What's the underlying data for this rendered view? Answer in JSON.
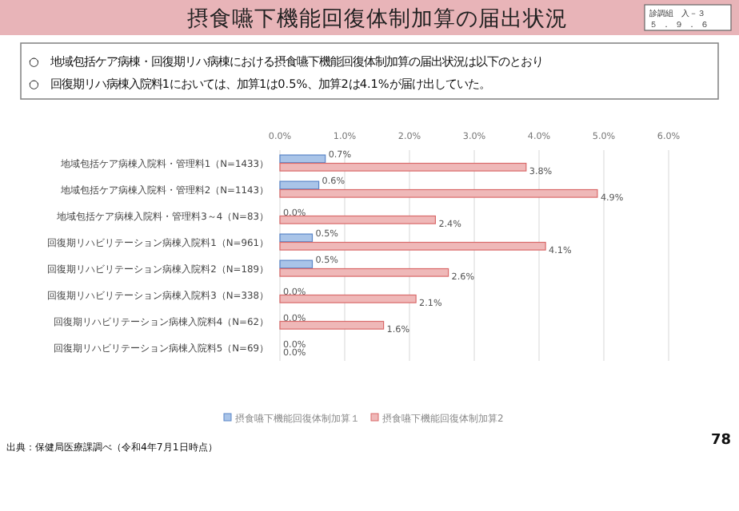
{
  "chart_data": {
    "type": "bar",
    "orientation": "horizontal",
    "title": "摂食嚥下機能回復体制加算の届出状況",
    "categories": [
      "地域包括ケア病棟入院料・管理料1（N=1433）",
      "地域包括ケア病棟入院料・管理料2（N=1143）",
      "地域包括ケア病棟入院料・管理料3～4（N=83）",
      "回復期リハビリテーション病棟入院料1（N=961）",
      "回復期リハビリテーション病棟入院料2（N=189）",
      "回復期リハビリテーション病棟入院料3（N=338）",
      "回復期リハビリテーション病棟入院料4（N=62）",
      "回復期リハビリテーション病棟入院料5（N=69）"
    ],
    "series": [
      {
        "name": "摂食嚥下機能回復体制加算１",
        "color": "#a9c4e8",
        "values": [
          0.7,
          0.6,
          0.0,
          0.5,
          0.5,
          0.0,
          0.0,
          0.0
        ],
        "value_labels": [
          "0.7%",
          "0.6%",
          "0.0%",
          "0.5%",
          "0.5%",
          "0.0%",
          "0.0%",
          "0.0%"
        ]
      },
      {
        "name": "摂食嚥下機能回復体制加算2",
        "color": "#efb8b8",
        "values": [
          3.8,
          4.9,
          2.4,
          4.1,
          2.6,
          2.1,
          1.6,
          0.0
        ],
        "value_labels": [
          "3.8%",
          "4.9%",
          "2.4%",
          "4.1%",
          "2.6%",
          "2.1%",
          "1.6%",
          "0.0%"
        ]
      }
    ],
    "xlim": [
      0,
      6
    ],
    "xticks": [
      {
        "value": 0,
        "label": "0.0%"
      },
      {
        "value": 1,
        "label": "1.0%"
      },
      {
        "value": 2,
        "label": "2.0%"
      },
      {
        "value": 3,
        "label": "3.0%"
      },
      {
        "value": 4,
        "label": "4.0%"
      },
      {
        "value": 5,
        "label": "5.0%"
      },
      {
        "value": 6,
        "label": "6.0%"
      }
    ],
    "grid": "x",
    "legend": "bottom",
    "annotations": [
      "○　地域包括ケア病棟・回復期リハ病棟における摂食嚥下機能回復体制加算の届出状況は以下のとおり",
      "○　回復期リハ病棟入院料1においては、加算1は0.5%、加算2は4.1%が届け出していた。",
      "出典：保健局医療課調べ（令和4年7月1日時点）",
      "78",
      "診調組　入－３",
      "５．９．６"
    ]
  }
}
